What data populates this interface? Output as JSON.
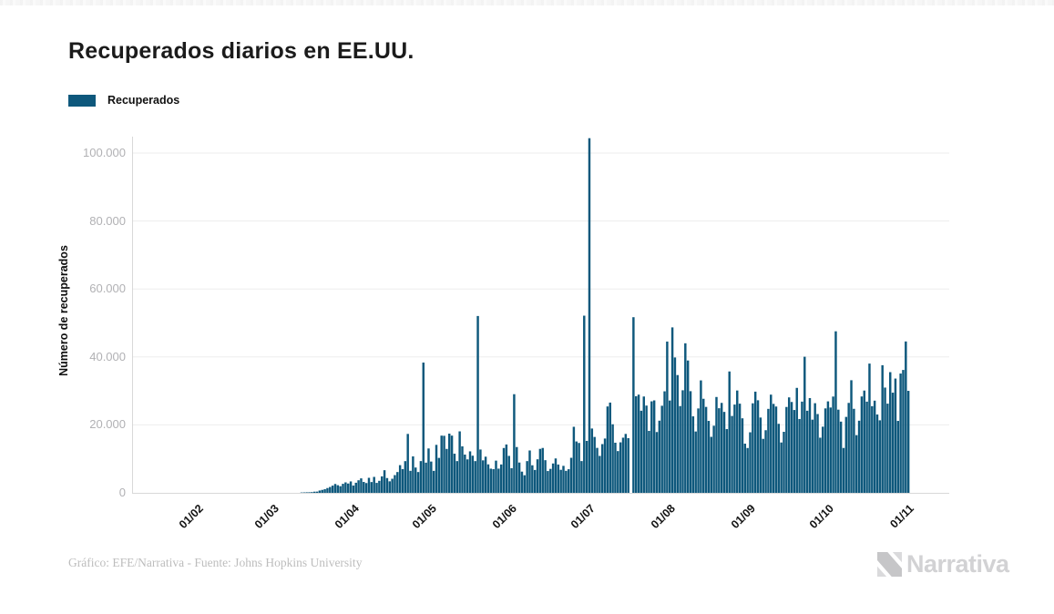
{
  "header": {
    "title": "Recuperados diarios en EE.UU."
  },
  "legend": {
    "label": "Recuperados",
    "swatch_color": "#0e587c"
  },
  "footer": {
    "credit": "Gráfico: EFE/Narrativa - Fuente: Johns Hopkins University"
  },
  "branding": {
    "logo_text": "Narrativa",
    "logo_icon": "narrativa-n-mark"
  },
  "chart_data": {
    "type": "bar",
    "title": "Recuperados diarios en EE.UU.",
    "xlabel": "",
    "ylabel": "Número de recuperados",
    "legend_position": "top-left",
    "grid": true,
    "x_unit": "day",
    "x_tick_labels": [
      "01/02",
      "01/03",
      "01/04",
      "01/05",
      "01/06",
      "01/07",
      "01/08",
      "01/09",
      "01/10",
      "01/11"
    ],
    "x_tick_day_offsets": [
      0,
      29,
      60,
      90,
      121,
      151,
      182,
      213,
      243,
      274
    ],
    "y_ticks": [
      0,
      20000,
      40000,
      60000,
      80000,
      100000
    ],
    "y_tick_labels": [
      "0",
      "20.000",
      "40.000",
      "60.000",
      "80.000",
      "100.000"
    ],
    "ylim": [
      0,
      104800
    ],
    "colors": {
      "bar": "#0e587c",
      "grid": "#ededed",
      "axis": "#d8d8d8",
      "y_tick_text": "#b1b1b4",
      "x_tick_text": "#141414"
    },
    "series": [
      {
        "name": "Recuperados",
        "color": "#0e587c",
        "values": [
          0,
          0,
          0,
          0,
          0,
          0,
          0,
          0,
          0,
          0,
          0,
          0,
          0,
          0,
          0,
          0,
          0,
          0,
          0,
          0,
          0,
          0,
          0,
          0,
          0,
          0,
          0,
          0,
          0,
          0,
          0,
          0,
          0,
          0,
          0,
          0,
          0,
          0,
          0,
          0,
          0,
          0,
          0,
          0,
          0,
          0,
          105,
          130,
          160,
          175,
          220,
          340,
          360,
          680,
          870,
          1070,
          1410,
          1720,
          2130,
          2610,
          2250,
          1955,
          2660,
          3080,
          2740,
          3360,
          2150,
          2970,
          3700,
          4260,
          3210,
          2880,
          4420,
          3180,
          4690,
          2930,
          3540,
          4840,
          6660,
          4350,
          3390,
          4150,
          5220,
          6120,
          8150,
          6990,
          9330,
          17340,
          6480,
          10730,
          7450,
          6120,
          9340,
          38340,
          8890,
          13060,
          9210,
          6470,
          14120,
          10280,
          16840,
          16790,
          12930,
          17430,
          16840,
          11520,
          9340,
          18090,
          13680,
          11260,
          9850,
          12210,
          10930,
          9340,
          52040,
          12750,
          9560,
          10640,
          8380,
          7120,
          6980,
          9480,
          7120,
          8350,
          13190,
          14230,
          10870,
          7260,
          29030,
          13480,
          8920,
          6240,
          5180,
          9340,
          12470,
          8110,
          6730,
          9870,
          12940,
          13210,
          9610,
          6420,
          7050,
          8640,
          10120,
          8330,
          6780,
          7940,
          6480,
          6950,
          10310,
          19440,
          15120,
          14680,
          9350,
          52140,
          15290,
          104370,
          18930,
          16450,
          13230,
          10870,
          14340,
          15980,
          25420,
          26560,
          20180,
          14750,
          12290,
          14860,
          16230,
          17340,
          16100,
          0,
          51690,
          28430,
          28900,
          24170,
          28350,
          25680,
          18240,
          26930,
          27210,
          17890,
          21240,
          25630,
          29880,
          44520,
          27170,
          48690,
          39840,
          34660,
          25540,
          30190,
          44010,
          38950,
          29920,
          22510,
          18050,
          24840,
          33090,
          27680,
          25290,
          21170,
          16480,
          19750,
          28210,
          24900,
          26470,
          23820,
          18760,
          35720,
          22630,
          25980,
          30120,
          26240,
          21930,
          14470,
          13190,
          17820,
          26350,
          29780,
          27240,
          22160,
          15890,
          18430,
          24710,
          28900,
          26180,
          25400,
          20310,
          14820,
          17960,
          25270,
          28090,
          26740,
          24380,
          30890,
          21730,
          26850,
          40050,
          24160,
          27890,
          21540,
          26380,
          23190,
          16230,
          19470,
          24850,
          26920,
          25110,
          28340,
          47540,
          24480,
          20960,
          13210,
          22350,
          26470,
          33140,
          24730,
          16980,
          21230,
          28360,
          30100,
          26840,
          38040,
          25510,
          27130,
          23060,
          21340,
          37560,
          30980,
          26250,
          35520,
          29480,
          33630,
          21170,
          35110,
          36170,
          44550,
          30020
        ]
      }
    ]
  }
}
